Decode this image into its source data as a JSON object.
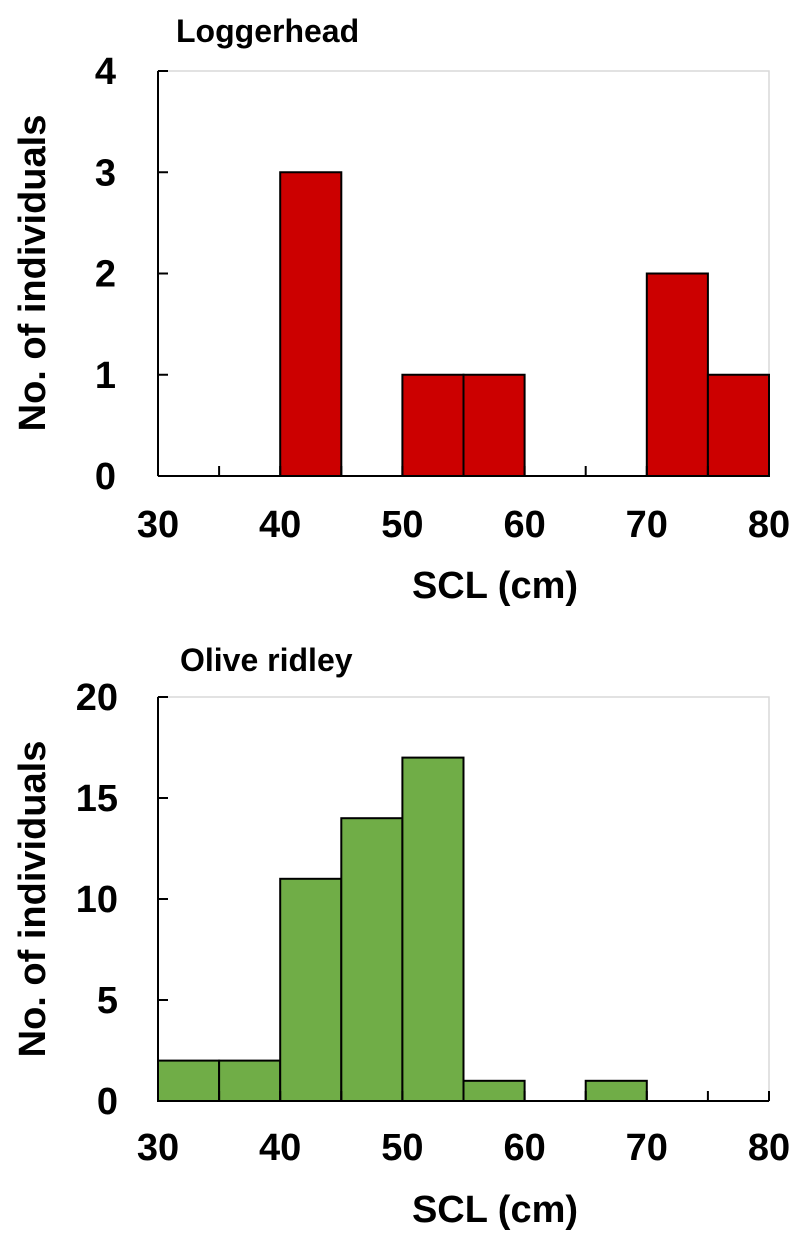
{
  "chart_data": [
    {
      "type": "bar",
      "title": "Loggerhead",
      "xlabel": "SCL (cm)",
      "ylabel": "No. of individuals",
      "bin_edges": [
        30,
        35,
        40,
        45,
        50,
        55,
        60,
        65,
        70,
        75,
        80
      ],
      "values": [
        0,
        0,
        3,
        0,
        1,
        1,
        0,
        0,
        2,
        1
      ],
      "xlim": [
        30,
        80
      ],
      "ylim": [
        0,
        4
      ],
      "xticks": [
        30,
        40,
        50,
        60,
        70,
        80
      ],
      "yticks": [
        0,
        1,
        2,
        3,
        4
      ],
      "bar_color": "#cc0000",
      "grid": false
    },
    {
      "type": "bar",
      "title": "Olive ridley",
      "xlabel": "SCL (cm)",
      "ylabel": "No. of individuals",
      "bin_edges": [
        30,
        35,
        40,
        45,
        50,
        55,
        60,
        65,
        70,
        75,
        80
      ],
      "values": [
        2,
        2,
        11,
        14,
        17,
        1,
        0,
        1,
        0,
        0
      ],
      "xlim": [
        30,
        80
      ],
      "ylim": [
        0,
        20
      ],
      "xticks": [
        30,
        40,
        50,
        60,
        70,
        80
      ],
      "yticks": [
        0,
        5,
        10,
        15,
        20
      ],
      "bar_color": "#70ad47",
      "grid": false
    }
  ]
}
